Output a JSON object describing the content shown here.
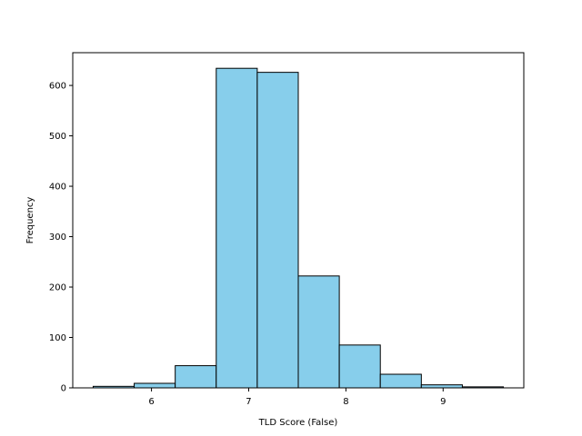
{
  "chart_data": {
    "type": "bar",
    "title": "",
    "xlabel": "TLD Score (False)",
    "ylabel": "Frequency",
    "bin_edges": [
      5.4,
      5.822,
      6.244,
      6.666,
      7.088,
      7.51,
      7.932,
      8.354,
      8.776,
      9.198,
      9.62
    ],
    "values": [
      3,
      9,
      44,
      634,
      626,
      222,
      85,
      27,
      6,
      2
    ],
    "xlim": [
      5.19,
      9.83
    ],
    "ylim": [
      0,
      665
    ],
    "xticks": [
      6,
      7,
      8,
      9
    ],
    "yticks": [
      0,
      100,
      200,
      300,
      400,
      500,
      600
    ],
    "bar_color": "#87ceeb",
    "edge_color": "#000000",
    "grid": false
  }
}
